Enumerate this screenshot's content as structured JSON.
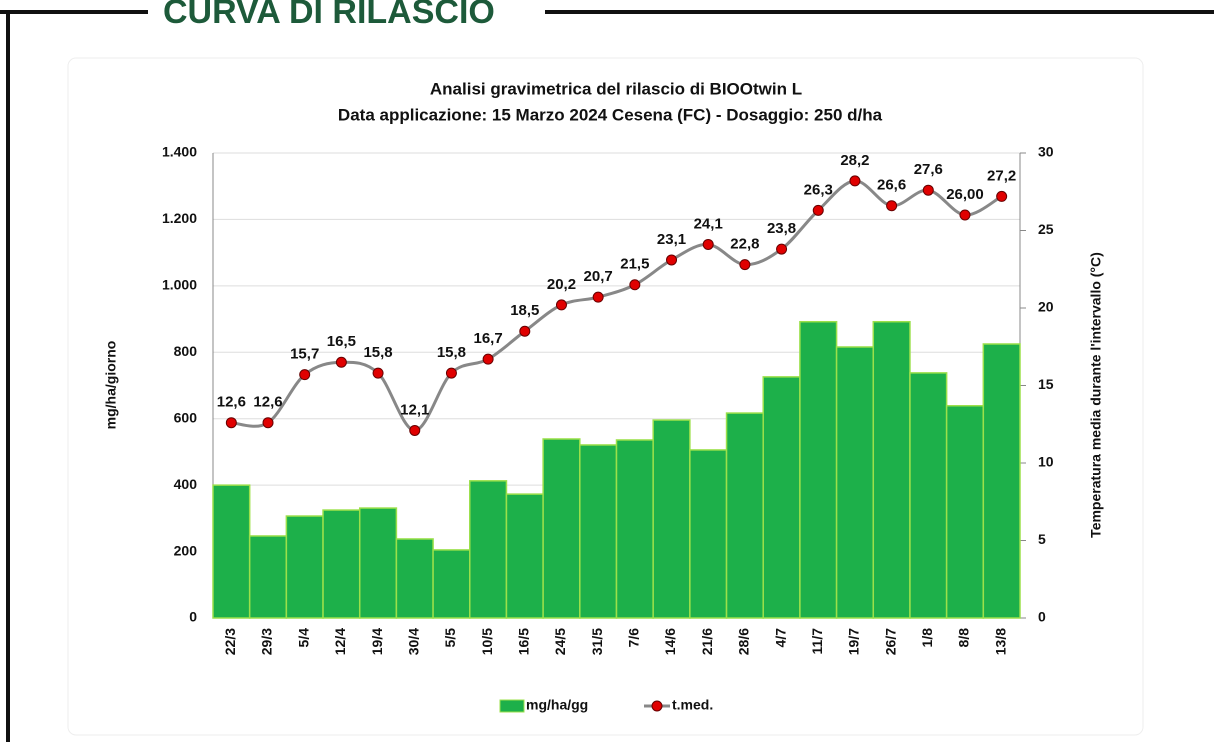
{
  "header": {
    "title": "CURVA DI RILASCIO"
  },
  "chart_data": {
    "type": "bar",
    "title": [
      "Analisi gravimetrica del rilascio di BIOOtwin L",
      "Data applicazione: 15 Marzo 2024 Cesena (FC) - Dosaggio: 250 d/ha"
    ],
    "ylabel": "mg/ha/giorno",
    "y2label": "Temperatura media durante l'intervallo (°C)",
    "categories": [
      "22/3",
      "29/3",
      "5/4",
      "12/4",
      "19/4",
      "30/4",
      "5/5",
      "10/5",
      "16/5",
      "24/5",
      "31/5",
      "7/6",
      "14/6",
      "21/6",
      "28/6",
      "4/7",
      "11/7",
      "19/7",
      "26/7",
      "1/8",
      "8/8",
      "13/8"
    ],
    "series": [
      {
        "name": "mg/ha/gg",
        "type": "bar",
        "color": "#1db04a",
        "values": [
          400,
          247,
          307,
          325,
          331,
          238,
          205,
          413,
          373,
          539,
          521,
          536,
          596,
          506,
          617,
          726,
          892,
          816,
          892,
          738,
          639,
          825
        ]
      },
      {
        "name": "t.med.",
        "type": "line",
        "axis": "y2",
        "color": "#e00000",
        "values": [
          12.6,
          12.6,
          15.7,
          16.5,
          15.8,
          12.1,
          15.8,
          16.7,
          18.5,
          20.2,
          20.7,
          21.5,
          23.1,
          24.1,
          22.8,
          23.8,
          26.3,
          28.2,
          26.6,
          27.6,
          26.0,
          27.2
        ],
        "value_labels": [
          "12,6",
          "12,6",
          "15,7",
          "16,5",
          "15,8",
          "12,1",
          "15,8",
          "16,7",
          "18,5",
          "20,2",
          "20,7",
          "21,5",
          "23,1",
          "24,1",
          "22,8",
          "23,8",
          "26,3",
          "28,2",
          "26,6",
          "27,6",
          "26,00",
          "27,2"
        ]
      }
    ],
    "ylim": [
      0,
      1400
    ],
    "yticks": [
      0,
      200,
      400,
      600,
      800,
      {
        "value": 1000,
        "label": "1.000"
      },
      {
        "value": 1200,
        "label": "1.200"
      },
      {
        "value": 1400,
        "label": "1.400"
      }
    ],
    "y2lim": [
      0,
      30
    ],
    "y2ticks": [
      0,
      5,
      10,
      15,
      20,
      25,
      30
    ],
    "grid": true,
    "legend": "bottom"
  }
}
